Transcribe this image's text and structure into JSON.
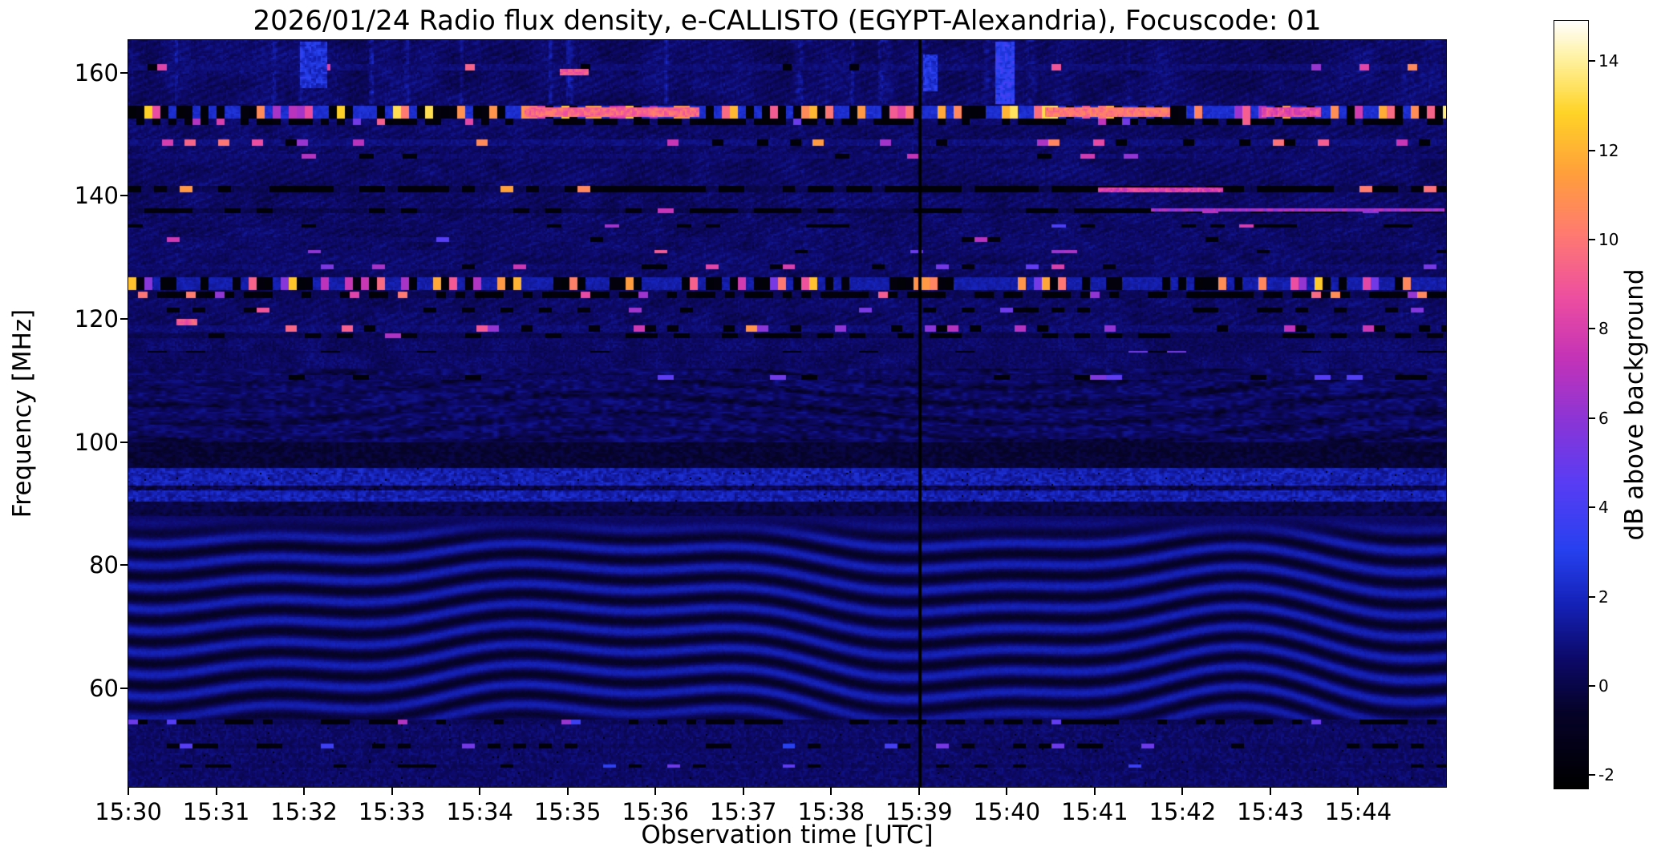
{
  "chart_data": {
    "type": "heatmap",
    "title": "2026/01/24  Radio flux density, e-CALLISTO (EGYPT-Alexandria), Focuscode: 01",
    "xlabel": "Observation time [UTC]",
    "ylabel": "Frequency [MHz]",
    "x_ticks": [
      "15:30",
      "15:31",
      "15:32",
      "15:33",
      "15:34",
      "15:35",
      "15:36",
      "15:37",
      "15:38",
      "15:39",
      "15:40",
      "15:41",
      "15:42",
      "15:43",
      "15:44"
    ],
    "x_span_minutes": 15,
    "y_ticks": [
      160,
      140,
      120,
      100,
      80,
      60
    ],
    "y_range": [
      44.0,
      165.3
    ],
    "value_range": [
      -2.3,
      14.9
    ],
    "grid": false,
    "colorbar": {
      "label": "dB above background",
      "ticks": [
        -2,
        0,
        2,
        4,
        6,
        8,
        10,
        12,
        14
      ]
    },
    "colormap_stops": [
      [
        0.0,
        "#000000"
      ],
      [
        0.1,
        "#06032a"
      ],
      [
        0.17,
        "#0d0a6b"
      ],
      [
        0.24,
        "#1522b8"
      ],
      [
        0.31,
        "#2741f0"
      ],
      [
        0.4,
        "#5a3df4"
      ],
      [
        0.48,
        "#8c35d6"
      ],
      [
        0.56,
        "#c433b8"
      ],
      [
        0.64,
        "#ee4fa0"
      ],
      [
        0.72,
        "#ff7a72"
      ],
      [
        0.8,
        "#ff9f3c"
      ],
      [
        0.88,
        "#ffd427"
      ],
      [
        0.95,
        "#fff2a0"
      ],
      [
        1.0,
        "#ffffff"
      ]
    ],
    "features": {
      "vline": {
        "t": 0.6,
        "v": -2.2,
        "time_label": "15:39"
      },
      "waves": {
        "f_min": 50,
        "f_max": 88
      },
      "rows": [
        {
          "f": 161.0,
          "hw": 0.5,
          "seg": 6,
          "p_black": 0.04,
          "p_bright": 0.05,
          "base": 0.8,
          "lo": 5,
          "hi": 11
        },
        {
          "f": 153.8,
          "hw": 1.05,
          "seg": 5,
          "p_black": 0.28,
          "p_bright": 0.36,
          "base": 2.3,
          "lo": 6,
          "hi": 14
        },
        {
          "f": 152.2,
          "hw": 0.55,
          "seg": 5,
          "p_black": 0.52,
          "p_bright": 0.1,
          "base": 0.7,
          "lo": 5,
          "hi": 10
        },
        {
          "f": 148.8,
          "hw": 0.45,
          "seg": 7,
          "p_black": 0.08,
          "p_bright": 0.15,
          "base": 0.9,
          "lo": 6,
          "hi": 12
        },
        {
          "f": 146.5,
          "hw": 0.35,
          "seg": 9,
          "p_black": 0.06,
          "p_bright": 0.05,
          "base": 0.7,
          "lo": 4,
          "hi": 8
        },
        {
          "f": 141.2,
          "hw": 0.5,
          "seg": 8,
          "p_black": 0.58,
          "p_bright": 0.1,
          "base": 0.2,
          "lo": 6,
          "hi": 12
        },
        {
          "f": 137.8,
          "hw": 0.4,
          "seg": 10,
          "p_black": 0.42,
          "p_bright": 0.06,
          "base": 0.1,
          "lo": 5,
          "hi": 9
        },
        {
          "f": 135.2,
          "hw": 0.25,
          "seg": 9,
          "p_black": 0.1,
          "p_bright": 0.04,
          "base": 0.5,
          "lo": 4,
          "hi": 8
        },
        {
          "f": 133.0,
          "hw": 0.3,
          "seg": 8,
          "p_black": 0.05,
          "p_bright": 0.05,
          "base": 0.6,
          "lo": 4,
          "hi": 9
        },
        {
          "f": 131.0,
          "hw": 0.3,
          "seg": 8,
          "p_black": 0.04,
          "p_bright": 0.05,
          "base": 0.6,
          "lo": 5,
          "hi": 10
        },
        {
          "f": 128.6,
          "hw": 0.3,
          "seg": 8,
          "p_black": 0.1,
          "p_bright": 0.08,
          "base": 0.7,
          "lo": 4,
          "hi": 9
        },
        {
          "f": 125.9,
          "hw": 1.0,
          "seg": 5,
          "p_black": 0.26,
          "p_bright": 0.3,
          "base": 1.6,
          "lo": 5,
          "hi": 13
        },
        {
          "f": 124.0,
          "hw": 0.5,
          "seg": 6,
          "p_black": 0.52,
          "p_bright": 0.12,
          "base": 0.3,
          "lo": 5,
          "hi": 11
        },
        {
          "f": 121.5,
          "hw": 0.35,
          "seg": 8,
          "p_black": 0.22,
          "p_bright": 0.08,
          "base": 0.5,
          "lo": 4,
          "hi": 9
        },
        {
          "f": 118.6,
          "hw": 0.45,
          "seg": 7,
          "p_black": 0.1,
          "p_bright": 0.13,
          "base": 0.8,
          "lo": 5,
          "hi": 12
        },
        {
          "f": 117.4,
          "hw": 0.3,
          "seg": 10,
          "p_black": 0.32,
          "p_bright": 0.04,
          "base": 0.2,
          "lo": 4,
          "hi": 8
        },
        {
          "f": 114.8,
          "hw": 0.25,
          "seg": 12,
          "p_black": 0.18,
          "p_bright": 0.03,
          "base": 0.3,
          "lo": 3,
          "hi": 6
        },
        {
          "f": 110.6,
          "hw": 0.3,
          "seg": 10,
          "p_black": 0.12,
          "p_bright": 0.05,
          "base": 0.4,
          "lo": 3,
          "hi": 7
        },
        {
          "f": 54.6,
          "hw": 0.4,
          "seg": 6,
          "p_black": 0.42,
          "p_bright": 0.06,
          "base": 0.3,
          "lo": 3,
          "hi": 7
        },
        {
          "f": 50.8,
          "hw": 0.3,
          "seg": 8,
          "p_black": 0.22,
          "p_bright": 0.05,
          "base": 0.4,
          "lo": 3,
          "hi": 6
        },
        {
          "f": 47.6,
          "hw": 0.3,
          "seg": 8,
          "p_black": 0.18,
          "p_bright": 0.04,
          "base": 0.4,
          "lo": 3,
          "hi": 6
        }
      ],
      "patches": [
        {
          "f0": 159.8,
          "f1": 160.8,
          "t0": 0.327,
          "t1": 0.349,
          "v": 9
        },
        {
          "f0": 155.0,
          "f1": 165.2,
          "t0": 0.658,
          "t1": 0.672,
          "v": 3.2
        },
        {
          "f0": 157.0,
          "f1": 163.0,
          "t0": 0.603,
          "t1": 0.614,
          "v": 2.6
        },
        {
          "f0": 157.5,
          "f1": 165.2,
          "t0": 0.13,
          "t1": 0.15,
          "v": 2.4
        },
        {
          "f0": 152.9,
          "f1": 154.6,
          "t0": 0.3,
          "t1": 0.432,
          "v": 9.5
        },
        {
          "f0": 152.9,
          "f1": 154.6,
          "t0": 0.695,
          "t1": 0.79,
          "v": 10
        },
        {
          "f0": 152.9,
          "f1": 154.6,
          "t0": 0.86,
          "t1": 0.905,
          "v": 8.5
        },
        {
          "f0": 140.8,
          "f1": 141.6,
          "t0": 0.735,
          "t1": 0.83,
          "v": 8
        },
        {
          "f0": 137.5,
          "f1": 138.2,
          "t0": 0.775,
          "t1": 0.998,
          "v": 6.5
        },
        {
          "f0": 119.0,
          "f1": 120.2,
          "t0": 0.036,
          "t1": 0.052,
          "v": 9
        }
      ]
    }
  }
}
